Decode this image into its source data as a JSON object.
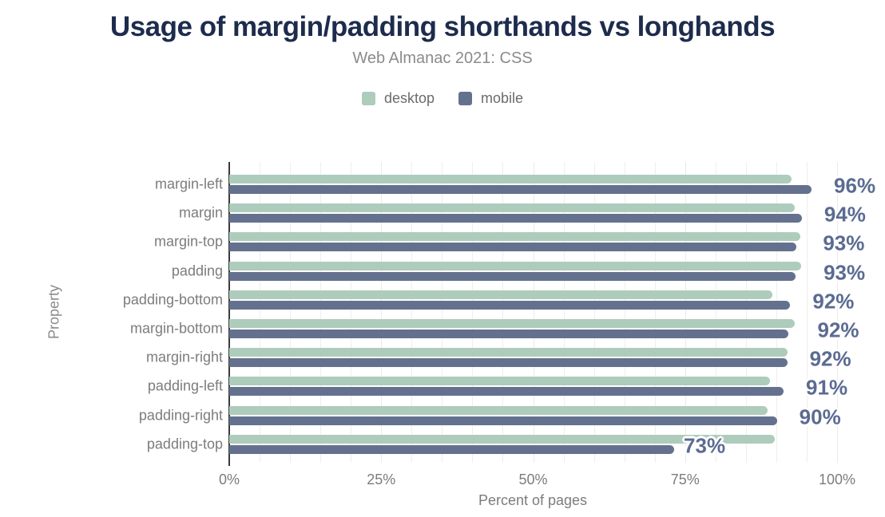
{
  "chart_data": {
    "type": "bar",
    "orientation": "horizontal",
    "title": "Usage of margin/padding shorthands vs longhands",
    "subtitle": "Web Almanac 2021: CSS",
    "categories": [
      "margin-left",
      "margin",
      "margin-top",
      "padding",
      "padding-bottom",
      "margin-bottom",
      "margin-right",
      "padding-left",
      "padding-right",
      "padding-top"
    ],
    "series": [
      {
        "name": "desktop",
        "color": "#aeccbc",
        "values": [
          92.5,
          93.0,
          94.0,
          94.1,
          89.3,
          93.1,
          91.8,
          88.9,
          88.6,
          89.8
        ]
      },
      {
        "name": "mobile",
        "color": "#64718e",
        "values": [
          95.8,
          94.2,
          93.3,
          93.2,
          92.3,
          92.0,
          91.8,
          91.2,
          90.1,
          73.2
        ]
      }
    ],
    "value_labels": [
      "96%",
      "94%",
      "93%",
      "93%",
      "92%",
      "92%",
      "92%",
      "91%",
      "90%",
      "73%"
    ],
    "value_labels_series": "mobile",
    "xlabel": "Percent of pages",
    "ylabel": "Property",
    "xlim": [
      0,
      100
    ],
    "xticks": [
      {
        "value": 0,
        "label": "0%"
      },
      {
        "value": 25,
        "label": "25%"
      },
      {
        "value": 50,
        "label": "50%"
      },
      {
        "value": 75,
        "label": "75%"
      },
      {
        "value": 100,
        "label": "100%"
      }
    ],
    "grid": {
      "orientation": "vertical",
      "minor_step_pct": 5
    },
    "legend_position": "top",
    "colors": {
      "title": "#1d2c4d",
      "subtitle": "#8b8b8b",
      "axis_text": "#7c7c7c",
      "axis_line": "#3a3a3a",
      "value_label": "#5b6b92",
      "gridline": "#f1eeec",
      "background": "#ffffff"
    }
  }
}
